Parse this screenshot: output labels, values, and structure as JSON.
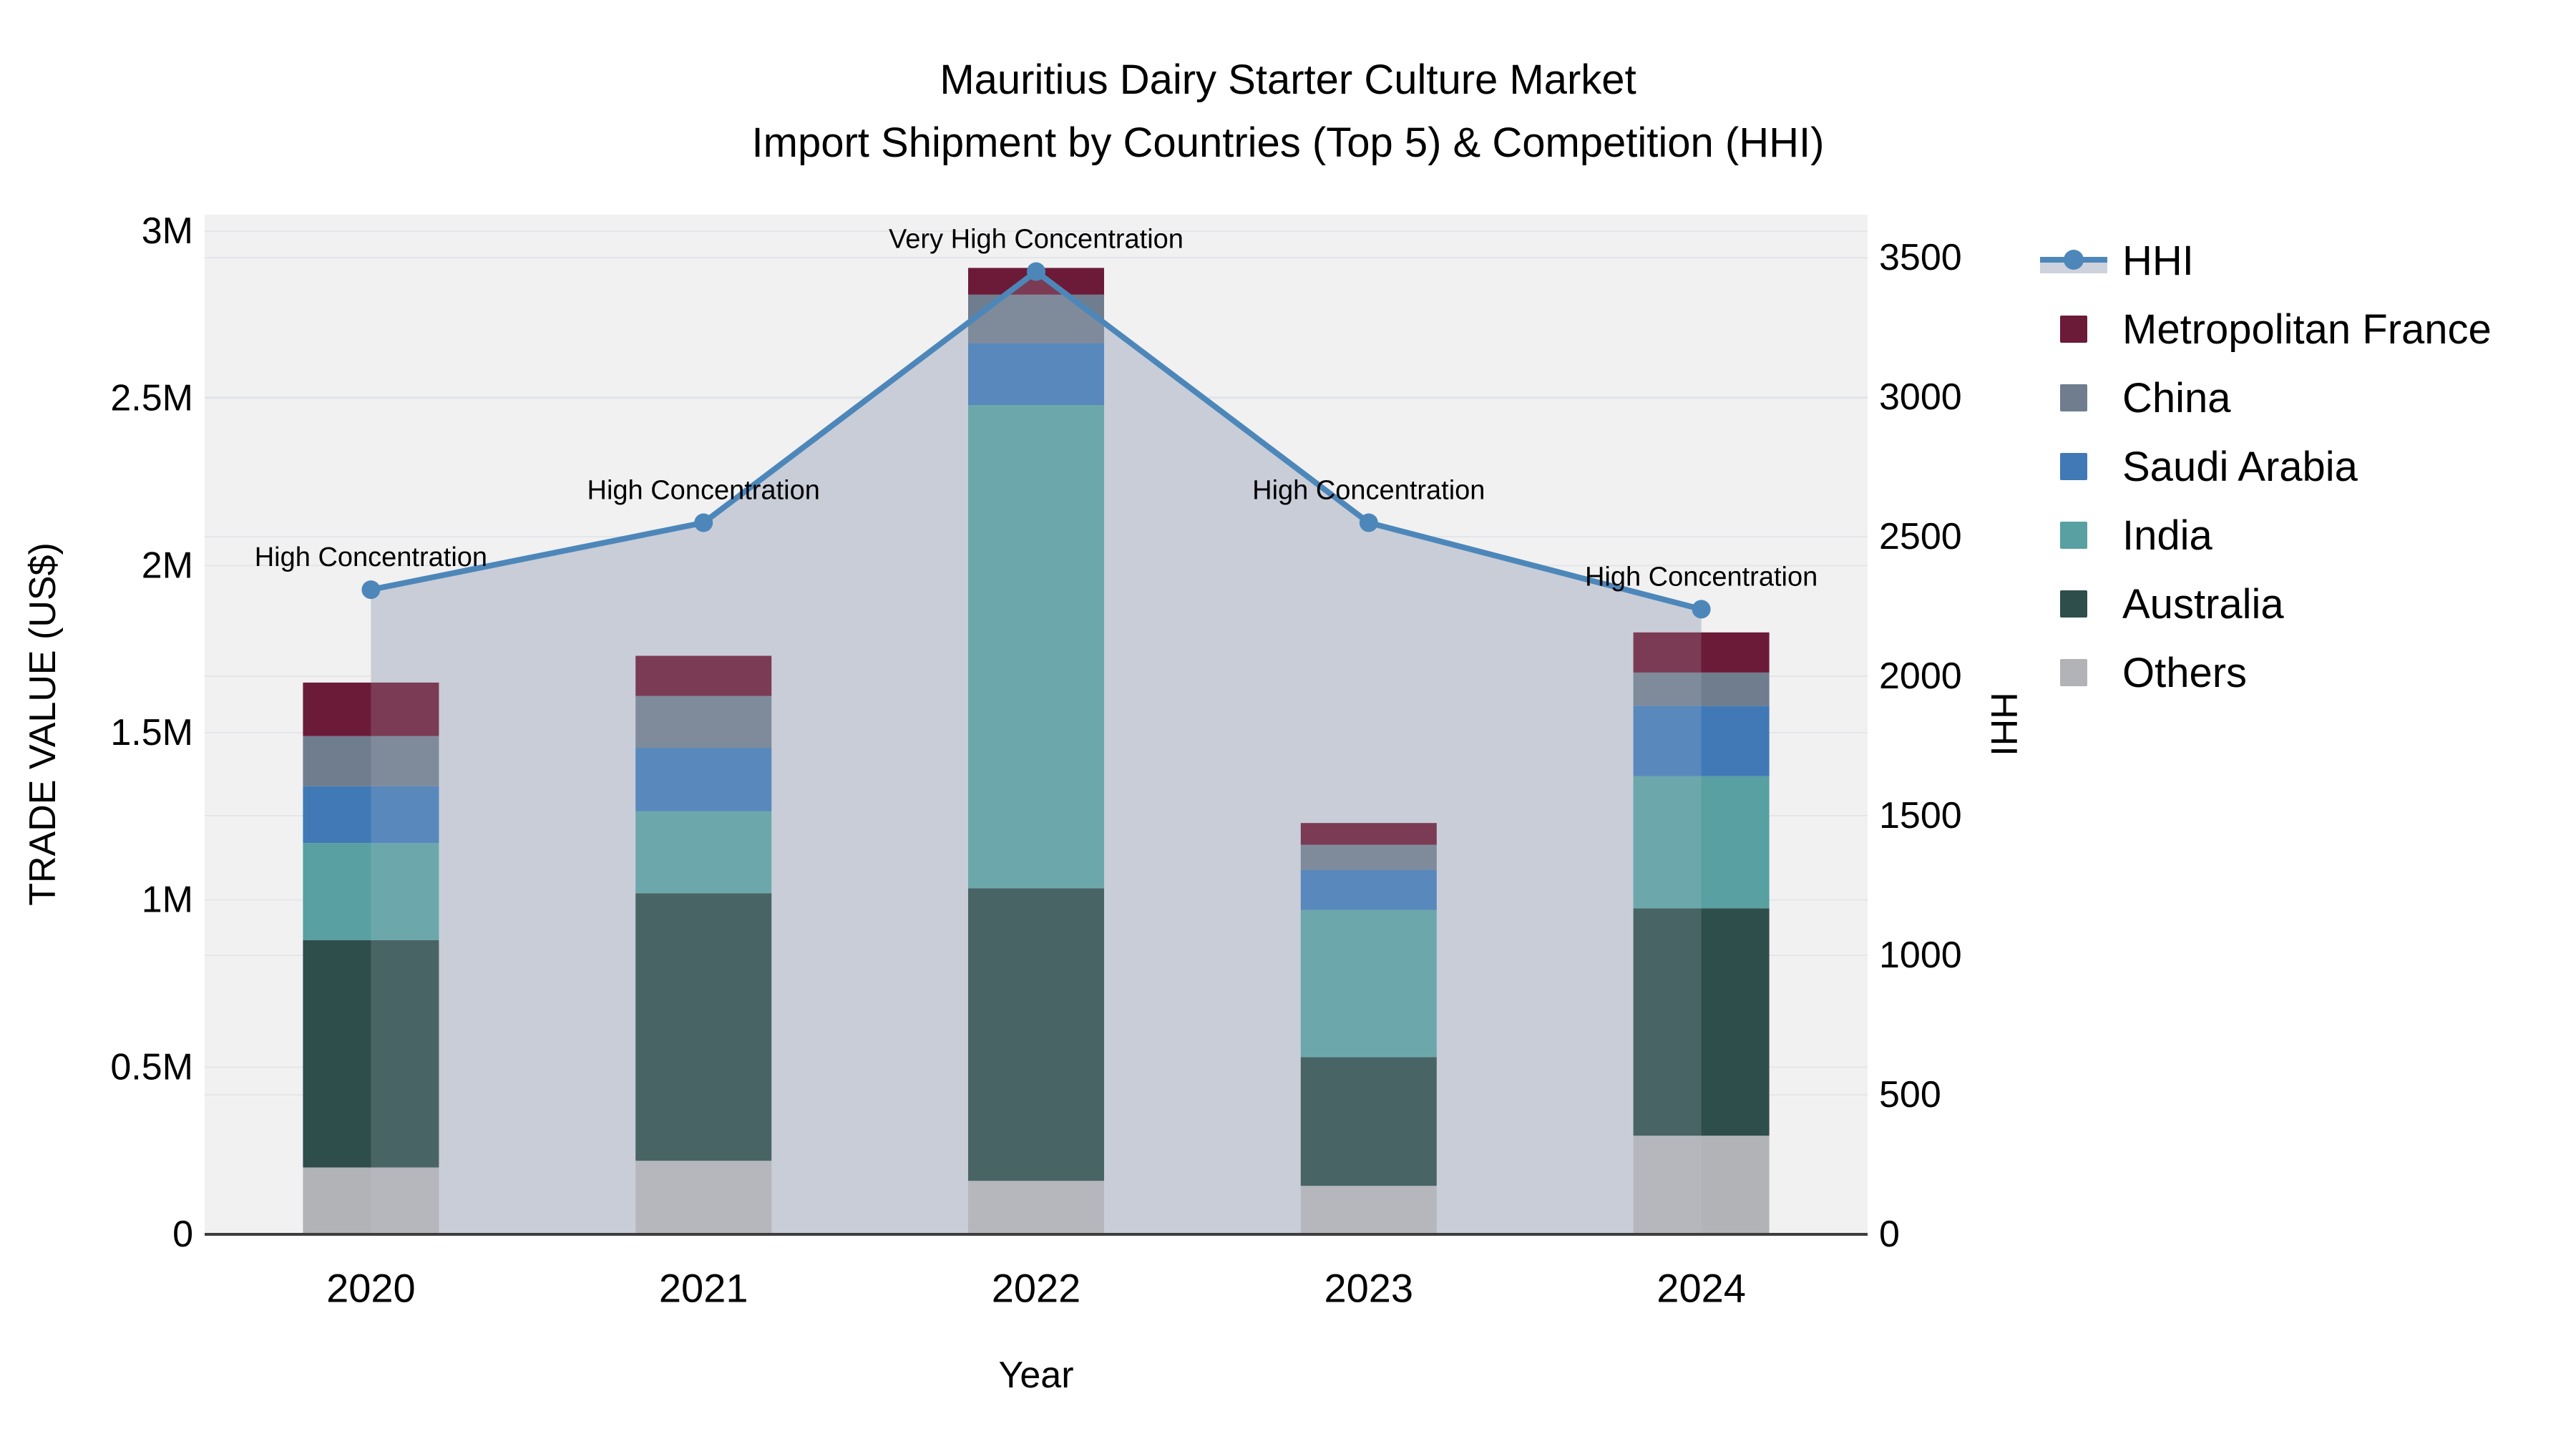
{
  "title": {
    "line1": "Mauritius Dairy Starter Culture Market",
    "line2": "Import Shipment by Countries (Top 5) & Competition (HHI)"
  },
  "axes": {
    "x_title": "Year",
    "y_left_title": "TRADE VALUE (US$)",
    "y_right_title": "HHI",
    "y_left_ticks": [
      {
        "label": "0",
        "value": 0
      },
      {
        "label": "0.5M",
        "value": 500000
      },
      {
        "label": "1M",
        "value": 1000000
      },
      {
        "label": "1.5M",
        "value": 1500000
      },
      {
        "label": "2M",
        "value": 2000000
      },
      {
        "label": "2.5M",
        "value": 2500000
      },
      {
        "label": "3M",
        "value": 3000000
      }
    ],
    "y_right_ticks": [
      {
        "label": "0",
        "value": 0
      },
      {
        "label": "500",
        "value": 500
      },
      {
        "label": "1000",
        "value": 1000
      },
      {
        "label": "1500",
        "value": 1500
      },
      {
        "label": "2000",
        "value": 2000
      },
      {
        "label": "2500",
        "value": 2500
      },
      {
        "label": "3000",
        "value": 3000
      },
      {
        "label": "3500",
        "value": 3500
      }
    ]
  },
  "chart_data": {
    "type": "bar+line",
    "title": "Mauritius Dairy Starter Culture Market — Import Shipment by Countries (Top 5) & Competition (HHI)",
    "categories": [
      "2020",
      "2021",
      "2022",
      "2023",
      "2024"
    ],
    "stack_order_bottom_to_top": [
      "Others",
      "Australia",
      "India",
      "Saudi Arabia",
      "China",
      "Metropolitan France"
    ],
    "series": [
      {
        "name": "Others",
        "color": "#b1b3b6",
        "values": [
          200000,
          220000,
          160000,
          145000,
          295000
        ]
      },
      {
        "name": "Australia",
        "color": "#2e4e4c",
        "values": [
          680000,
          800000,
          875000,
          385000,
          680000
        ]
      },
      {
        "name": "India",
        "color": "#58a0a1",
        "values": [
          290000,
          245000,
          1445000,
          440000,
          395000
        ]
      },
      {
        "name": "Saudi Arabia",
        "color": "#4079b6",
        "values": [
          170000,
          190000,
          185000,
          120000,
          210000
        ]
      },
      {
        "name": "China",
        "color": "#6f7d8e",
        "values": [
          150000,
          155000,
          145000,
          75000,
          100000
        ]
      },
      {
        "name": "Metropolitan France",
        "color": "#6b1b38",
        "values": [
          160000,
          120000,
          80000,
          65000,
          120000
        ]
      }
    ],
    "bar_totals": [
      1650000,
      1730000,
      2890000,
      1230000,
      1800000
    ],
    "line_series": {
      "name": "HHI",
      "color": "#4d87ba",
      "area_fill_color": "#c8cdd8",
      "values": [
        2310,
        2550,
        3450,
        2550,
        2240
      ]
    },
    "annotations": [
      "High Concentration",
      "High Concentration",
      "Very High Concentration",
      "High Concentration",
      "High Concentration"
    ],
    "xlabel": "Year",
    "ylabel_left": "TRADE VALUE (US$)",
    "ylabel_right": "HHI",
    "y_left_range": [
      0,
      3000000
    ],
    "y_right_range": [
      0,
      3500
    ],
    "grid": true,
    "legend_position": "right",
    "legend_order": [
      "HHI",
      "Metropolitan France",
      "China",
      "Saudi Arabia",
      "India",
      "Australia",
      "Others"
    ],
    "plot_background": "#f1f1f2",
    "gridline_color": "#e4e5e8",
    "axisline_color": "#3d3d3d"
  }
}
